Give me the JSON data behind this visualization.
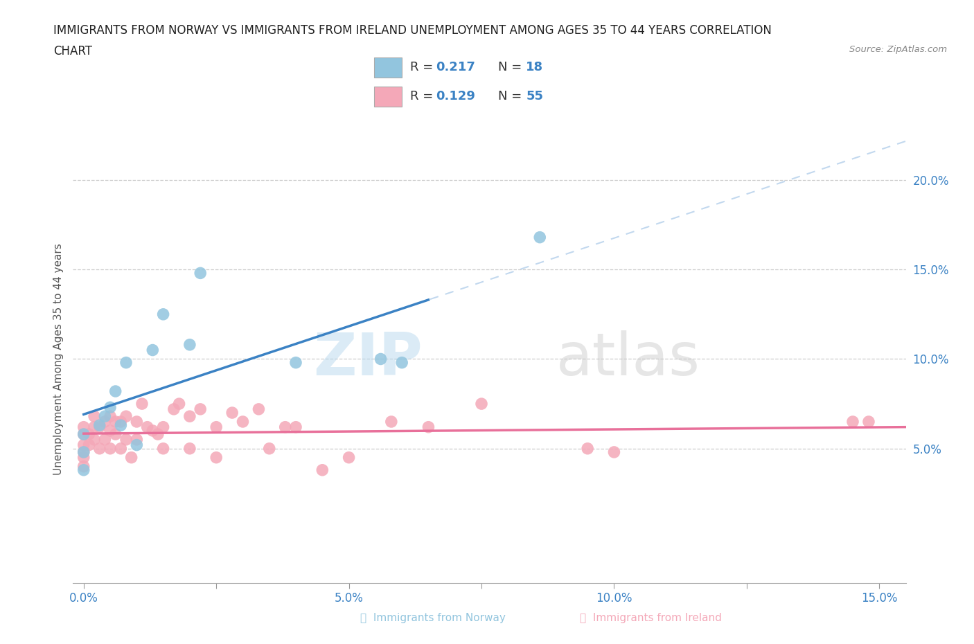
{
  "title_line1": "IMMIGRANTS FROM NORWAY VS IMMIGRANTS FROM IRELAND UNEMPLOYMENT AMONG AGES 35 TO 44 YEARS CORRELATION",
  "title_line2": "CHART",
  "source": "Source: ZipAtlas.com",
  "ylabel": "Unemployment Among Ages 35 to 44 years",
  "xlim": [
    -0.002,
    0.155
  ],
  "ylim": [
    -0.025,
    0.225
  ],
  "xticks": [
    0.0,
    0.025,
    0.05,
    0.075,
    0.1,
    0.125,
    0.15
  ],
  "xticklabels": [
    "0.0%",
    "",
    "5.0%",
    "",
    "10.0%",
    "",
    "15.0%"
  ],
  "yticks_right": [
    0.05,
    0.1,
    0.15,
    0.2
  ],
  "yticklabels_right": [
    "5.0%",
    "10.0%",
    "15.0%",
    "20.0%"
  ],
  "grid_yticks": [
    0.05,
    0.1,
    0.15,
    0.2
  ],
  "norway_color": "#92C5DE",
  "ireland_color": "#F4A8B8",
  "norway_line_color": "#3B82C4",
  "ireland_line_color": "#E8709A",
  "norway_dashed_color": "#A8C8E8",
  "watermark_text": "ZIPatlas",
  "norway_R": "0.217",
  "norway_N": "18",
  "ireland_R": "0.129",
  "ireland_N": "55",
  "legend_label_norway": "Immigrants from Norway",
  "legend_label_ireland": "Immigrants from Ireland",
  "blue_text_color": "#3B82C4",
  "dark_text_color": "#222222",
  "grid_color": "#CCCCCC",
  "norway_scatter_x": [
    0.0,
    0.0,
    0.0,
    0.003,
    0.004,
    0.005,
    0.006,
    0.007,
    0.008,
    0.01,
    0.013,
    0.015,
    0.02,
    0.022,
    0.04,
    0.056,
    0.06,
    0.086
  ],
  "norway_scatter_y": [
    0.038,
    0.048,
    0.058,
    0.063,
    0.068,
    0.073,
    0.082,
    0.063,
    0.098,
    0.052,
    0.105,
    0.125,
    0.108,
    0.148,
    0.098,
    0.1,
    0.098,
    0.168
  ],
  "ireland_scatter_x": [
    0.0,
    0.0,
    0.0,
    0.0,
    0.0,
    0.0,
    0.001,
    0.001,
    0.002,
    0.002,
    0.002,
    0.003,
    0.003,
    0.004,
    0.004,
    0.005,
    0.005,
    0.005,
    0.006,
    0.006,
    0.007,
    0.007,
    0.008,
    0.008,
    0.009,
    0.01,
    0.01,
    0.011,
    0.012,
    0.013,
    0.014,
    0.015,
    0.015,
    0.017,
    0.018,
    0.02,
    0.02,
    0.022,
    0.025,
    0.025,
    0.028,
    0.03,
    0.033,
    0.035,
    0.038,
    0.04,
    0.045,
    0.05,
    0.058,
    0.065,
    0.075,
    0.095,
    0.1,
    0.145,
    0.148
  ],
  "ireland_scatter_y": [
    0.04,
    0.045,
    0.048,
    0.052,
    0.058,
    0.062,
    0.052,
    0.058,
    0.055,
    0.062,
    0.068,
    0.05,
    0.062,
    0.055,
    0.065,
    0.05,
    0.06,
    0.068,
    0.058,
    0.065,
    0.05,
    0.065,
    0.055,
    0.068,
    0.045,
    0.055,
    0.065,
    0.075,
    0.062,
    0.06,
    0.058,
    0.05,
    0.062,
    0.072,
    0.075,
    0.05,
    0.068,
    0.072,
    0.045,
    0.062,
    0.07,
    0.065,
    0.072,
    0.05,
    0.062,
    0.062,
    0.038,
    0.045,
    0.065,
    0.062,
    0.075,
    0.05,
    0.048,
    0.065,
    0.065
  ],
  "background_color": "#FFFFFF"
}
